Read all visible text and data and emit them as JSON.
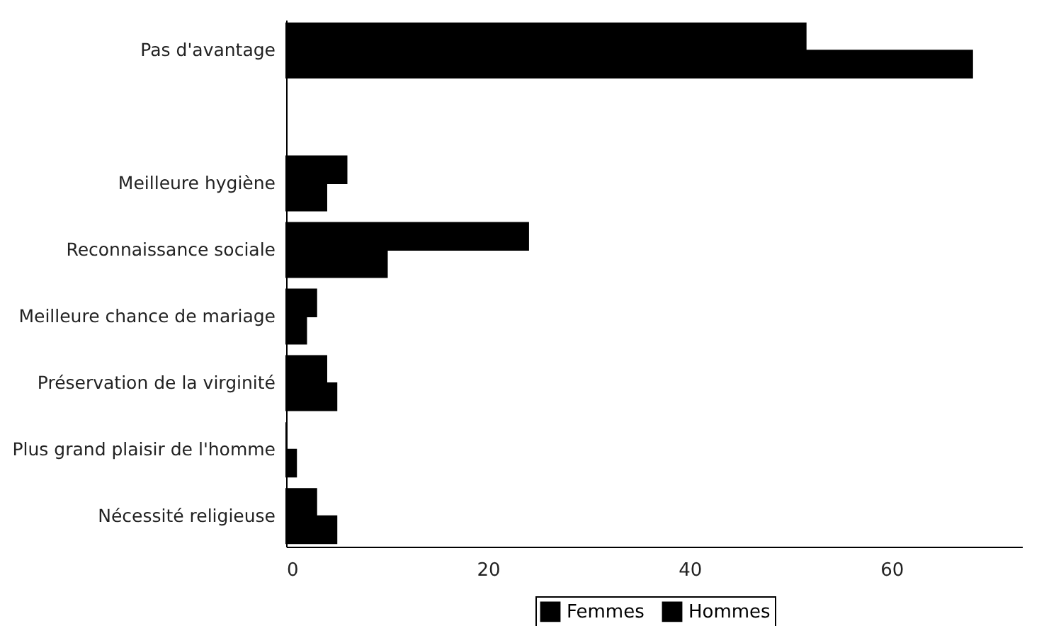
{
  "chart_data": {
    "type": "bar",
    "orientation": "horizontal",
    "categories": [
      "Pas d'avantage",
      null,
      "Meilleure hygiène",
      "Reconnaissance sociale ",
      "Meilleure chance de mariage",
      "Préservation de la virginité",
      "Plus grand plaisir de l'homme",
      "Nécessité religieuse"
    ],
    "series": [
      {
        "name": "Femmes",
        "color": "#000000",
        "values": [
          51.5,
          null,
          6,
          24,
          3,
          4,
          0,
          3
        ]
      },
      {
        "name": "Hommes",
        "color": "#000000",
        "values": [
          68,
          null,
          4,
          10,
          2,
          5,
          1,
          5
        ]
      }
    ],
    "xlim": [
      0,
      73
    ],
    "xticks": [
      0,
      20,
      40,
      60
    ],
    "grid": false,
    "legend": "bottom"
  }
}
